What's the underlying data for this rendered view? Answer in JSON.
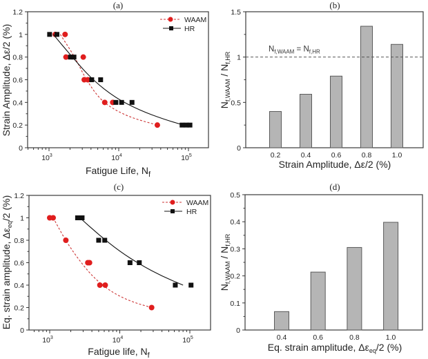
{
  "chart_data": [
    {
      "id": "a",
      "type": "scatter",
      "title": "(a)",
      "xlabel": "Fatigue Life, N",
      "xlabel_sub": "f",
      "ylabel": "Strain Amplitude, Δε/2 (%)",
      "xscale": "log",
      "xlim": [
        500,
        200000
      ],
      "ylim": [
        0,
        1.2
      ],
      "xticks": [
        {
          "value": 1000,
          "base": "10",
          "exp": "3"
        },
        {
          "value": 10000,
          "base": "10",
          "exp": "4"
        },
        {
          "value": 100000,
          "base": "10",
          "exp": "5"
        }
      ],
      "yticks": [
        0,
        0.2,
        0.4,
        0.6,
        0.8,
        1,
        1.2
      ],
      "ytick_labels": [
        "0",
        "0.2",
        "0.4",
        "0.6",
        "0.8",
        "1",
        "1.2"
      ],
      "legend": {
        "position": "top-right",
        "entries": [
          "WAAM",
          "HR"
        ]
      },
      "series": [
        {
          "name": "WAAM",
          "color": "#e01e1e",
          "marker": "circle",
          "line": "dashed",
          "points": [
            [
              1230,
              1.0
            ],
            [
              1700,
              1.0
            ],
            [
              1750,
              0.8
            ],
            [
              3100,
              0.8
            ],
            [
              3200,
              0.6
            ],
            [
              3600,
              0.6
            ],
            [
              6300,
              0.4
            ],
            [
              8200,
              0.4
            ],
            [
              35800,
              0.2
            ]
          ],
          "fit": [
            [
              1450,
              1.0
            ],
            [
              2350,
              0.8
            ],
            [
              3400,
              0.6
            ],
            [
              5500,
              0.42
            ],
            [
              9000,
              0.33
            ],
            [
              16000,
              0.26
            ],
            [
              35800,
              0.2
            ]
          ]
        },
        {
          "name": "HR",
          "color": "#111111",
          "marker": "square",
          "line": "solid",
          "points": [
            [
              1020,
              1.0
            ],
            [
              1300,
              1.0
            ],
            [
              2030,
              0.8
            ],
            [
              2280,
              0.8
            ],
            [
              4100,
              0.6
            ],
            [
              5500,
              0.6
            ],
            [
              9100,
              0.4
            ],
            [
              11000,
              0.4
            ],
            [
              15500,
              0.4
            ],
            [
              81000,
              0.2
            ],
            [
              93000,
              0.2
            ],
            [
              105000,
              0.2
            ]
          ],
          "fit": [
            [
              1150,
              1.0
            ],
            [
              2150,
              0.8
            ],
            [
              4200,
              0.6
            ],
            [
              9000,
              0.44
            ],
            [
              20000,
              0.33
            ],
            [
              45000,
              0.25
            ],
            [
              85000,
              0.2
            ]
          ]
        }
      ]
    },
    {
      "id": "b",
      "type": "bar",
      "title": "(b)",
      "xlabel": "Strain Amplitude, Δε/2 (%)",
      "ylabel_main": "N",
      "ylabel_sub1": "f,WAAM",
      "ylabel_mid": " / N",
      "ylabel_sub2": "f,HR",
      "categories": [
        "0.2",
        "0.4",
        "0.6",
        "0.8",
        "1.0"
      ],
      "values": [
        0.4,
        0.59,
        0.79,
        1.34,
        1.14
      ],
      "ylim": [
        0,
        1.5
      ],
      "yticks": [
        0,
        0.5,
        1,
        1.5
      ],
      "ytick_labels": [
        "0",
        "0.5",
        "1",
        "1.5"
      ],
      "bar_color": "#b5b5b5",
      "reference_line": {
        "y": 1.0,
        "style": "dashed",
        "label_main": "N",
        "label_sub1": "f,WAAM",
        "label_mid": " = N",
        "label_sub2": "f,HR"
      }
    },
    {
      "id": "c",
      "type": "scatter",
      "title": "(c)",
      "xlabel": "Fatigue life, N",
      "xlabel_sub": "f",
      "ylabel": "Eq. strain amplitude,  Δε",
      "ylabel_sub": "eq",
      "ylabel_tail": "/2 (%)",
      "xscale": "log",
      "xlim": [
        500,
        200000
      ],
      "ylim": [
        0,
        1.2
      ],
      "xticks": [
        {
          "value": 1000,
          "base": "10",
          "exp": "3"
        },
        {
          "value": 10000,
          "base": "10",
          "exp": "4"
        },
        {
          "value": 100000,
          "base": "10",
          "exp": "5"
        }
      ],
      "yticks": [
        0,
        0.2,
        0.4,
        0.6,
        0.8,
        1,
        1.2
      ],
      "ytick_labels": [
        "0",
        "0.2",
        "0.4",
        "0.6",
        "0.8",
        "1",
        "1.2"
      ],
      "legend": {
        "position": "top-right",
        "entries": [
          "WAAM",
          "HR"
        ]
      },
      "series": [
        {
          "name": "WAAM",
          "color": "#e01e1e",
          "marker": "circle",
          "line": "dashed",
          "points": [
            [
              1000,
              1.0
            ],
            [
              1120,
              1.0
            ],
            [
              1700,
              0.8
            ],
            [
              3500,
              0.6
            ],
            [
              3700,
              0.6
            ],
            [
              5200,
              0.4
            ],
            [
              6200,
              0.4
            ],
            [
              28500,
              0.2
            ]
          ],
          "fit": [
            [
              1120,
              1.0
            ],
            [
              1750,
              0.78
            ],
            [
              2800,
              0.6
            ],
            [
              4500,
              0.45
            ],
            [
              8000,
              0.33
            ],
            [
              15000,
              0.25
            ],
            [
              28500,
              0.2
            ]
          ]
        },
        {
          "name": "HR",
          "color": "#111111",
          "marker": "square",
          "line": "solid",
          "points": [
            [
              2500,
              1.0
            ],
            [
              2900,
              1.0
            ],
            [
              5000,
              0.8
            ],
            [
              6100,
              0.8
            ],
            [
              14000,
              0.6
            ],
            [
              19000,
              0.6
            ],
            [
              62000,
              0.4
            ],
            [
              104000,
              0.4
            ]
          ],
          "fit": [
            [
              2700,
              1.0
            ],
            [
              5000,
              0.85
            ],
            [
              10000,
              0.7
            ],
            [
              20000,
              0.58
            ],
            [
              40000,
              0.48
            ],
            [
              80000,
              0.4
            ]
          ]
        }
      ]
    },
    {
      "id": "d",
      "type": "bar",
      "title": "(d)",
      "xlabel": "Eq. strain amplitude, Δε",
      "xlabel_sub": "eq",
      "xlabel_tail": "/2 (%)",
      "ylabel_main": "N",
      "ylabel_sub1": "f,WAAM",
      "ylabel_mid": " / N",
      "ylabel_sub2": "f,HR",
      "categories": [
        "0.4",
        "0.6",
        "0.8",
        "1.0"
      ],
      "values": [
        0.068,
        0.214,
        0.305,
        0.398
      ],
      "ylim": [
        0,
        0.5
      ],
      "yticks": [
        0,
        0.1,
        0.2,
        0.3,
        0.4,
        0.5
      ],
      "ytick_labels": [
        "0",
        "0.1",
        "0.2",
        "0.3",
        "0.4",
        "0.5"
      ],
      "bar_color": "#b5b5b5"
    }
  ]
}
